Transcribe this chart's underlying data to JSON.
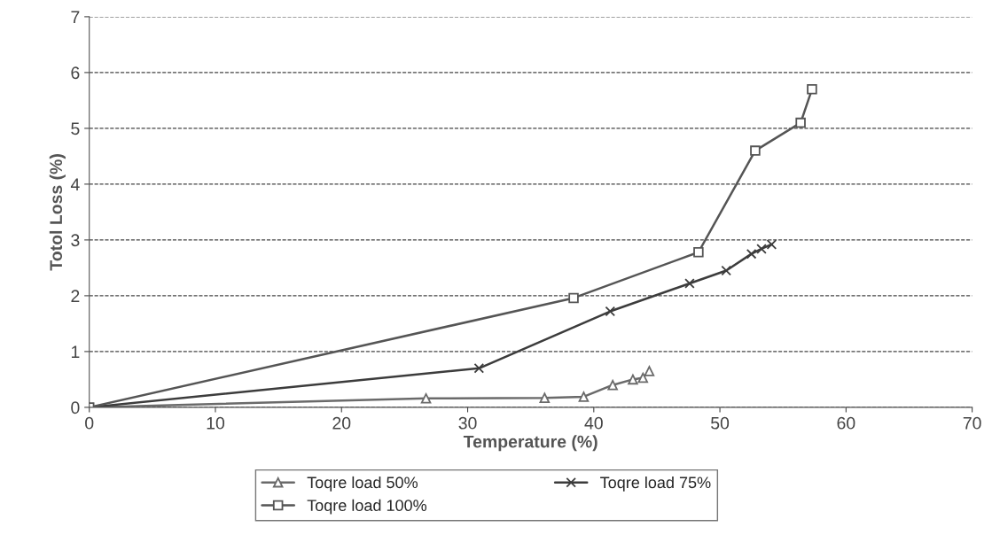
{
  "chart_data": {
    "type": "line",
    "xlabel": "Temperature (%)",
    "ylabel": "Totol Loss (%)",
    "xlim": [
      0,
      70
    ],
    "xticks": [
      0,
      10,
      20,
      30,
      40,
      50,
      60,
      70
    ],
    "ylim": [
      0,
      7
    ],
    "yticks": [
      0,
      1,
      2,
      3,
      4,
      5,
      6,
      7
    ],
    "grid": "y",
    "legend": "bottom",
    "line_style": "solid",
    "series": [
      {
        "name": "Toqre load 50%",
        "color": "#6a6a6a",
        "marker": "triangle",
        "x": [
          0,
          26.7,
          36.1,
          39.2,
          41.5,
          43.1,
          43.9,
          44.4
        ],
        "values": [
          0,
          0.16,
          0.17,
          0.19,
          0.4,
          0.5,
          0.53,
          0.65
        ]
      },
      {
        "name": "Toqre load 75%",
        "color": "#3c3c3c",
        "marker": "cross",
        "x": [
          0,
          30.9,
          41.3,
          47.6,
          50.5,
          52.5,
          53.3,
          54.1
        ],
        "values": [
          0,
          0.7,
          1.72,
          2.22,
          2.45,
          2.75,
          2.84,
          2.92
        ]
      },
      {
        "name": "Toqre load 100%",
        "color": "#555555",
        "marker": "square",
        "x": [
          0,
          38.4,
          48.3,
          52.8,
          56.4,
          57.3
        ],
        "values": [
          0,
          1.96,
          2.78,
          4.6,
          5.1,
          5.7
        ]
      }
    ]
  }
}
